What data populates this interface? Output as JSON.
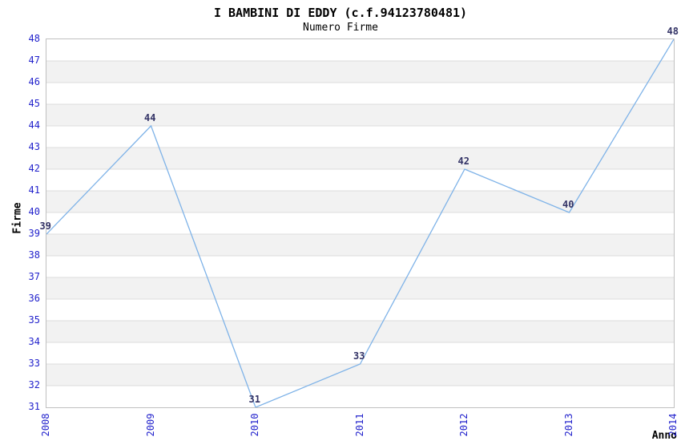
{
  "chart_data": {
    "type": "line",
    "title": "I BAMBINI DI EDDY (c.f.94123780481)",
    "subtitle": "Numero Firme",
    "xlabel": "Anno",
    "ylabel": "Firme",
    "categories": [
      "2008",
      "2009",
      "2010",
      "2011",
      "2012",
      "2013",
      "2014"
    ],
    "values": [
      39,
      44,
      31,
      33,
      42,
      40,
      48
    ],
    "ylim": [
      31,
      48
    ],
    "y_tick_step": 1,
    "grid": "horizontal",
    "legend": "none",
    "point_labels_shown": true,
    "colors": {
      "line": "#7fb3e8",
      "tick_label": "#2222cc",
      "point_label": "#333366",
      "gridline": "#dcdcdc",
      "band": "#f2f2f2",
      "plot_border": "#c0c0c0",
      "text": "#000000"
    }
  }
}
